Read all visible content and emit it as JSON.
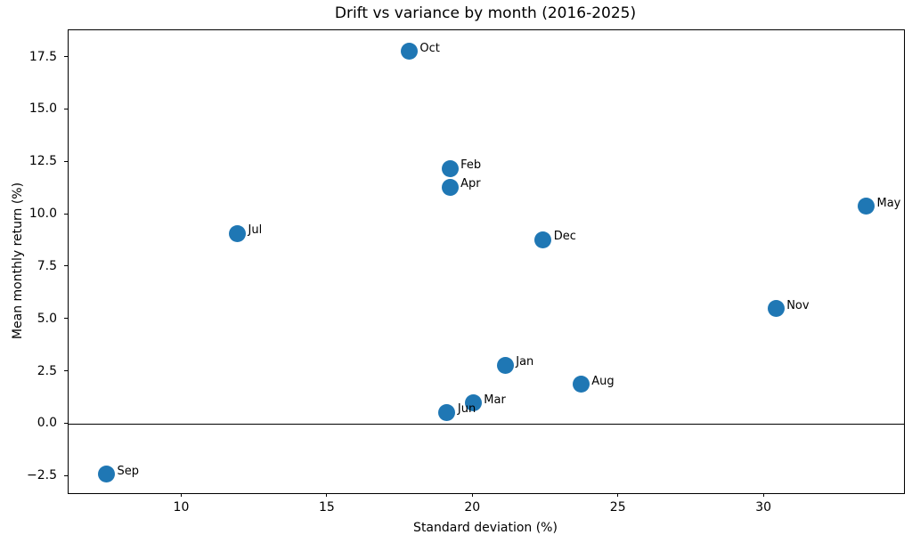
{
  "chart_data": {
    "type": "scatter",
    "title": "Drift vs variance by month (2016-2025)",
    "xlabel": "Standard deviation (%)",
    "ylabel": "Mean monthly return (%)",
    "marker_color": "#1f77b4",
    "grid": false,
    "legend": null,
    "xlim": [
      6.1,
      34.8
    ],
    "ylim": [
      -3.3,
      18.8
    ],
    "zero_line_y": 0,
    "xticks": [
      {
        "value": 10,
        "label": "10"
      },
      {
        "value": 15,
        "label": "15"
      },
      {
        "value": 20,
        "label": "20"
      },
      {
        "value": 25,
        "label": "25"
      },
      {
        "value": 30,
        "label": "30"
      }
    ],
    "yticks": [
      {
        "value": 17.5,
        "label": "17.5"
      },
      {
        "value": 15.0,
        "label": "15.0"
      },
      {
        "value": 12.5,
        "label": "12.5"
      },
      {
        "value": 10.0,
        "label": "10.0"
      },
      {
        "value": 7.5,
        "label": "7.5"
      },
      {
        "value": 5.0,
        "label": "5.0"
      },
      {
        "value": 2.5,
        "label": "2.5"
      },
      {
        "value": 0.0,
        "label": "0.0"
      },
      {
        "value": -2.5,
        "label": "−2.5"
      }
    ],
    "points": [
      {
        "label": "Jan",
        "x": 21.1,
        "y": 2.8
      },
      {
        "label": "Feb",
        "x": 19.2,
        "y": 12.2
      },
      {
        "label": "Mar",
        "x": 20.0,
        "y": 1.0
      },
      {
        "label": "Apr",
        "x": 19.2,
        "y": 11.3
      },
      {
        "label": "May",
        "x": 33.5,
        "y": 10.4
      },
      {
        "label": "Jun",
        "x": 19.1,
        "y": 0.55
      },
      {
        "label": "Jul",
        "x": 11.9,
        "y": 9.1
      },
      {
        "label": "Aug",
        "x": 23.7,
        "y": 1.9
      },
      {
        "label": "Sep",
        "x": 7.4,
        "y": -2.4
      },
      {
        "label": "Oct",
        "x": 17.8,
        "y": 17.8
      },
      {
        "label": "Nov",
        "x": 30.4,
        "y": 5.5
      },
      {
        "label": "Dec",
        "x": 22.4,
        "y": 8.8
      }
    ]
  }
}
